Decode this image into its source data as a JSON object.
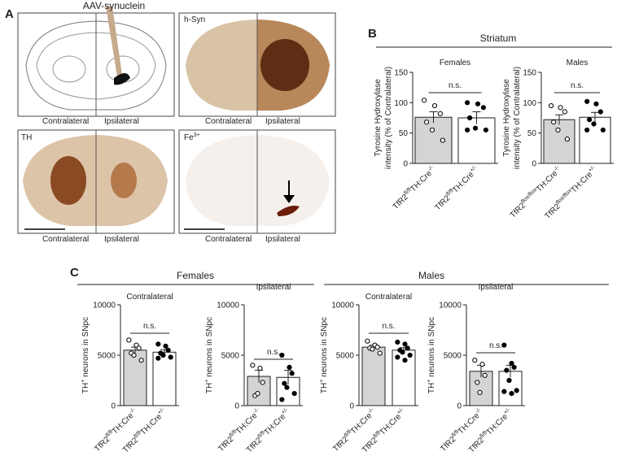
{
  "panel_a": {
    "label": "A",
    "injection": "AAV-synuclein",
    "images": [
      {
        "stain": null,
        "left": "Contralateral",
        "right": "Ipsilateral"
      },
      {
        "stain": "h-Syn",
        "left": "Contralateral",
        "right": "Ipsilateral"
      },
      {
        "stain": "TH",
        "left": "Contralateral",
        "right": "Ipsilateral"
      },
      {
        "stain": "Fe",
        "stain_sup": "3+",
        "left": "Contralateral",
        "right": "Ipsilateral"
      }
    ]
  },
  "panel_b": {
    "label": "B",
    "title": "Striatum",
    "charts": [
      {
        "title": "Females",
        "ylabel_lines": [
          "Tyrosine Hydroxylase",
          "intensity (% of Contralateral)"
        ],
        "ylim": [
          0,
          150
        ],
        "yticks": [
          0,
          50,
          100,
          150
        ],
        "annotation": "n.s.",
        "categories": [
          [
            "TfR2",
            "fl/fl",
            "TH:Cre",
            "-/-"
          ],
          [
            "TfR2",
            "fl/fl",
            "TH:Cre",
            "+/-"
          ]
        ],
        "means": [
          76,
          75
        ],
        "errors": [
          9,
          10
        ],
        "colors": [
          "#d4d4d4",
          "#ffffff"
        ],
        "points": [
          [
            104,
            95,
            82,
            68,
            55,
            38
          ],
          [
            100,
            98,
            92,
            75,
            58,
            55,
            55
          ]
        ]
      },
      {
        "title": "Males",
        "ylabel_lines": [
          "Tyrosine Hydroxylase",
          "intensity (% of Contralateral)"
        ],
        "ylim": [
          0,
          150
        ],
        "yticks": [
          0,
          50,
          100,
          150
        ],
        "annotation": "n.s.",
        "categories": [
          [
            "TfR2",
            "flox/flox",
            "TH:Cre",
            "-/-"
          ],
          [
            "TfR2",
            "flox/flox",
            "TH:Cre",
            "+/-"
          ]
        ],
        "means": [
          72,
          76
        ],
        "errors": [
          8,
          8
        ],
        "colors": [
          "#d4d4d4",
          "#ffffff"
        ],
        "points": [
          [
            95,
            92,
            85,
            68,
            55,
            40
          ],
          [
            102,
            98,
            85,
            72,
            65,
            55,
            55
          ]
        ]
      }
    ]
  },
  "panel_c": {
    "label": "C",
    "groups": [
      "Females",
      "Males"
    ],
    "charts": [
      {
        "title": "Contralateral",
        "ylabel": [
          "TH",
          "+",
          " neurons in SNpc"
        ],
        "ylim": [
          0,
          10000
        ],
        "yticks": [
          0,
          5000,
          10000
        ],
        "annotation": "n.s.",
        "categories": [
          [
            "TfR2",
            "fl/fl",
            "TH:Cre",
            "-/-"
          ],
          [
            "TfR2",
            "fl/fl",
            "TH:Cre",
            "+/-"
          ]
        ],
        "means": [
          5500,
          5300
        ],
        "errors": [
          300,
          250
        ],
        "colors": [
          "#d4d4d4",
          "#ffffff"
        ],
        "points": [
          [
            6500,
            6000,
            5700,
            5200,
            5000,
            4500
          ],
          [
            6100,
            5900,
            5500,
            5200,
            5000,
            4800,
            4700
          ]
        ]
      },
      {
        "title": "Ipsilateral",
        "ylabel": [
          "TH",
          "+",
          " neurons in SNpc"
        ],
        "ylim": [
          0,
          10000
        ],
        "yticks": [
          0,
          5000,
          10000
        ],
        "annotation": "n.s.",
        "categories": [
          [
            "TfR2",
            "fl/fl",
            "TH:Cre",
            "-/-"
          ],
          [
            "TfR2",
            "fl/fl",
            "TH:Cre",
            "+/-"
          ]
        ],
        "means": [
          2900,
          2800
        ],
        "errors": [
          600,
          700
        ],
        "colors": [
          "#d4d4d4",
          "#ffffff"
        ],
        "points": [
          [
            4000,
            3700,
            2300,
            1000,
            1200
          ],
          [
            5000,
            3800,
            3200,
            2200,
            1800,
            1200,
            600
          ]
        ]
      },
      {
        "title": "Contralateral",
        "ylabel": [
          "TH",
          "+",
          " neurons in SNpc"
        ],
        "ylim": [
          0,
          10000
        ],
        "yticks": [
          0,
          5000,
          10000
        ],
        "annotation": "n.s.",
        "categories": [
          [
            "TfR2",
            "fl/fl",
            "TH:Cre",
            "-/-"
          ],
          [
            "TfR2",
            "fl/fl",
            "TH:Cre",
            "+/-"
          ]
        ],
        "means": [
          5800,
          5500
        ],
        "errors": [
          200,
          250
        ],
        "colors": [
          "#d4d4d4",
          "#ffffff"
        ],
        "points": [
          [
            6400,
            6000,
            5800,
            5700,
            5600,
            5200
          ],
          [
            6300,
            6100,
            5700,
            5500,
            5300,
            5000,
            4800,
            4500
          ]
        ]
      },
      {
        "title": "Ipsilateral",
        "ylabel": [
          "TH",
          "+",
          " neurons in SNpc"
        ],
        "ylim": [
          0,
          10000
        ],
        "yticks": [
          0,
          5000,
          10000
        ],
        "annotation": "n.s.",
        "categories": [
          [
            "TfR2",
            "fl/fl",
            "TH:Cre",
            "-/-"
          ],
          [
            "TfR2",
            "fl/fl",
            "TH:Cre",
            "+/-"
          ]
        ],
        "means": [
          3400,
          3400
        ],
        "errors": [
          600,
          600
        ],
        "colors": [
          "#d4d4d4",
          "#ffffff"
        ],
        "points": [
          [
            4500,
            4100,
            3000,
            2300,
            1300
          ],
          [
            6000,
            4200,
            3800,
            3500,
            2500,
            1500,
            1400,
            1200
          ]
        ]
      }
    ]
  }
}
